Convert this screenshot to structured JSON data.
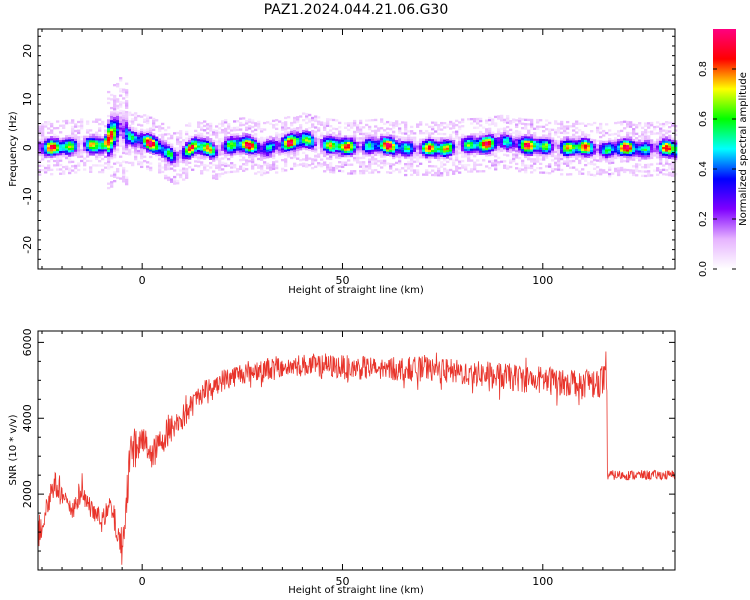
{
  "title": "PAZ1.2024.044.21.06.G30",
  "chart_data": [
    {
      "type": "heatmap",
      "xlabel": "Height of straight line (km)",
      "ylabel": "Frequency (Hz)",
      "xlim": [
        -26,
        133
      ],
      "ylim": [
        -25,
        24.5
      ],
      "xticks": [
        0,
        50,
        100
      ],
      "yticks": [
        20,
        10,
        0,
        -10,
        -20
      ],
      "ridge": {
        "x": [
          -25,
          -20,
          -15,
          -10,
          -8,
          -6,
          -3,
          0,
          3,
          6,
          8,
          10,
          13,
          16,
          18,
          20,
          25,
          30,
          35,
          40,
          45,
          50,
          55,
          60,
          65,
          70,
          75,
          80,
          85,
          90,
          95,
          100,
          105,
          110,
          115,
          120,
          125,
          130,
          133
        ],
        "y": [
          0,
          0.2,
          0.6,
          0.5,
          2.5,
          4.3,
          2,
          1.5,
          0.5,
          -1,
          -2,
          -1,
          0.5,
          0,
          -1,
          0.4,
          0.8,
          -0.2,
          0.8,
          1.8,
          0.7,
          0.2,
          0.3,
          0.6,
          -0.1,
          0,
          -0.2,
          0.6,
          0.7,
          1.4,
          0.5,
          0.4,
          0,
          0.2,
          -0.5,
          0.1,
          -0.3,
          0.1,
          -0.4
        ]
      },
      "colorbar": {
        "label": "Normalized spectral amplitude",
        "ticks": [
          0.0,
          0.2,
          0.4,
          0.6,
          0.8
        ],
        "range": [
          0,
          0.96
        ],
        "colors": [
          "#ffffff",
          "#e6b3ff",
          "#7f00ff",
          "#0000ff",
          "#00ffff",
          "#00ff00",
          "#ffff00",
          "#ff0000",
          "#ff0080"
        ]
      }
    },
    {
      "type": "line",
      "xlabel": "Height of straight line (km)",
      "ylabel": "SNR (10 * v/v)",
      "xlim": [
        -26,
        133
      ],
      "ylim": [
        0,
        6300
      ],
      "xticks": [
        0,
        50,
        100
      ],
      "yticks": [
        2000,
        4000,
        6000
      ],
      "color": "#e8342b",
      "envelope": {
        "x": [
          -26,
          -22,
          -18,
          -15,
          -12,
          -10,
          -8,
          -5,
          -3,
          0,
          3,
          6,
          10,
          15,
          20,
          25,
          30,
          35,
          40,
          50,
          60,
          70,
          80,
          90,
          100,
          110,
          116
        ],
        "mean": [
          900,
          2300,
          1600,
          2000,
          1500,
          1300,
          1700,
          600,
          3100,
          3400,
          3100,
          3600,
          4000,
          4700,
          5000,
          5200,
          5300,
          5350,
          5400,
          5350,
          5300,
          5300,
          5200,
          5100,
          5000,
          4950,
          5000
        ],
        "noise": [
          500,
          350,
          250,
          300,
          200,
          250,
          300,
          500,
          600,
          450,
          400,
          400,
          350,
          300,
          300,
          300,
          300,
          300,
          300,
          320,
          320,
          330,
          340,
          360,
          380,
          400,
          450
        ]
      },
      "drop_at": 116,
      "tail_level": 2500,
      "tail_noise": 130
    }
  ]
}
